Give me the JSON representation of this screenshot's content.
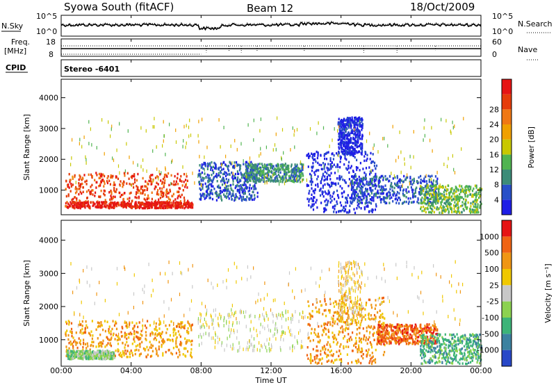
{
  "header": {
    "station": "Syowa South (fitACF)",
    "beam": "Beam 12",
    "date": "18/Oct/2009"
  },
  "summary_panels": {
    "nsky_label": "N.Sky",
    "nsky_ticks": [
      "10^5",
      "10^0"
    ],
    "nsearch_label": "N.Search",
    "nsearch_ticks": [
      "10^5",
      "10^0"
    ],
    "freq_label": "Freq.",
    "freq_unit": "[MHz]",
    "freq_ticks": [
      "18",
      "8"
    ],
    "nave_label": "Nave",
    "nave_ticks": [
      "60",
      "0"
    ],
    "cpid_label": "CPID",
    "cpid_value": "Stereo -6401"
  },
  "chart_data": [
    {
      "type": "heatmap",
      "name": "power",
      "ylabel": "Slant Range [km]",
      "yticks": [
        "1000",
        "2000",
        "3000",
        "4000"
      ],
      "ylim": [
        200,
        4600
      ],
      "colorbar_label": "Power [dB]",
      "colorbar_ticks": [
        "4",
        "8",
        "12",
        "16",
        "20",
        "24",
        "28"
      ],
      "colors": [
        "#1e1ee6",
        "#2850c8",
        "#3c8c78",
        "#50b450",
        "#c8c800",
        "#f0a000",
        "#f07814",
        "#e63c0a",
        "#e61414"
      ],
      "clusters": [
        {
          "t": [
            0.2,
            7.2
          ],
          "r": [
            500,
            1600
          ],
          "level": 7
        },
        {
          "t": [
            0.3,
            7.5
          ],
          "r": [
            450,
            650
          ],
          "level": 8
        },
        {
          "t": [
            7.8,
            11.2
          ],
          "r": [
            700,
            1950
          ],
          "level": 1
        },
        {
          "t": [
            10.5,
            13.8
          ],
          "r": [
            1300,
            1900
          ],
          "level": 2
        },
        {
          "t": [
            14.0,
            18.0
          ],
          "r": [
            300,
            2300
          ],
          "level": 0
        },
        {
          "t": [
            15.8,
            17.2
          ],
          "r": [
            2200,
            3400
          ],
          "level": 0
        },
        {
          "t": [
            16.5,
            21.5
          ],
          "r": [
            600,
            1500
          ],
          "level": 1
        },
        {
          "t": [
            20.5,
            24.0
          ],
          "r": [
            300,
            1200
          ],
          "level": 3
        },
        {
          "t": [
            0.5,
            23.0
          ],
          "r": [
            1200,
            3400
          ],
          "level": 4
        }
      ]
    },
    {
      "type": "heatmap",
      "name": "velocity",
      "ylabel": "Slant Range [km]",
      "yticks": [
        "1000",
        "2000",
        "3000",
        "4000"
      ],
      "ylim": [
        200,
        4600
      ],
      "colorbar_label": "Velocity [m s⁻¹]",
      "colorbar_ticks": [
        "1000",
        "500",
        "100",
        "25",
        "-25",
        "-100",
        "-500",
        "-1000"
      ],
      "colors": [
        "#2848c8",
        "#3c82a0",
        "#3cb478",
        "#8cd250",
        "#c8c8c8",
        "#f0c800",
        "#f09614",
        "#f06414",
        "#e61414"
      ],
      "clusters": [
        {
          "t": [
            0.2,
            7.5
          ],
          "r": [
            500,
            1600
          ],
          "level": 6
        },
        {
          "t": [
            0.3,
            3.0
          ],
          "r": [
            450,
            700
          ],
          "level": 3
        },
        {
          "t": [
            7.8,
            13.8
          ],
          "r": [
            700,
            1950
          ],
          "level": 4
        },
        {
          "t": [
            14.0,
            18.5
          ],
          "r": [
            300,
            2300
          ],
          "level": 6
        },
        {
          "t": [
            15.8,
            17.2
          ],
          "r": [
            1500,
            3400
          ],
          "level": 5
        },
        {
          "t": [
            18.0,
            21.5
          ],
          "r": [
            900,
            1500
          ],
          "level": 7
        },
        {
          "t": [
            20.5,
            24.0
          ],
          "r": [
            300,
            1200
          ],
          "level": 2
        },
        {
          "t": [
            0.5,
            23.0
          ],
          "r": [
            1200,
            3400
          ],
          "level": 5
        }
      ]
    }
  ],
  "xaxis": {
    "ticks": [
      "00:00",
      "04:00",
      "08:00",
      "12:00",
      "16:00",
      "20:00",
      "00:00"
    ],
    "label": "Time UT",
    "range_hours": [
      0,
      24
    ]
  }
}
